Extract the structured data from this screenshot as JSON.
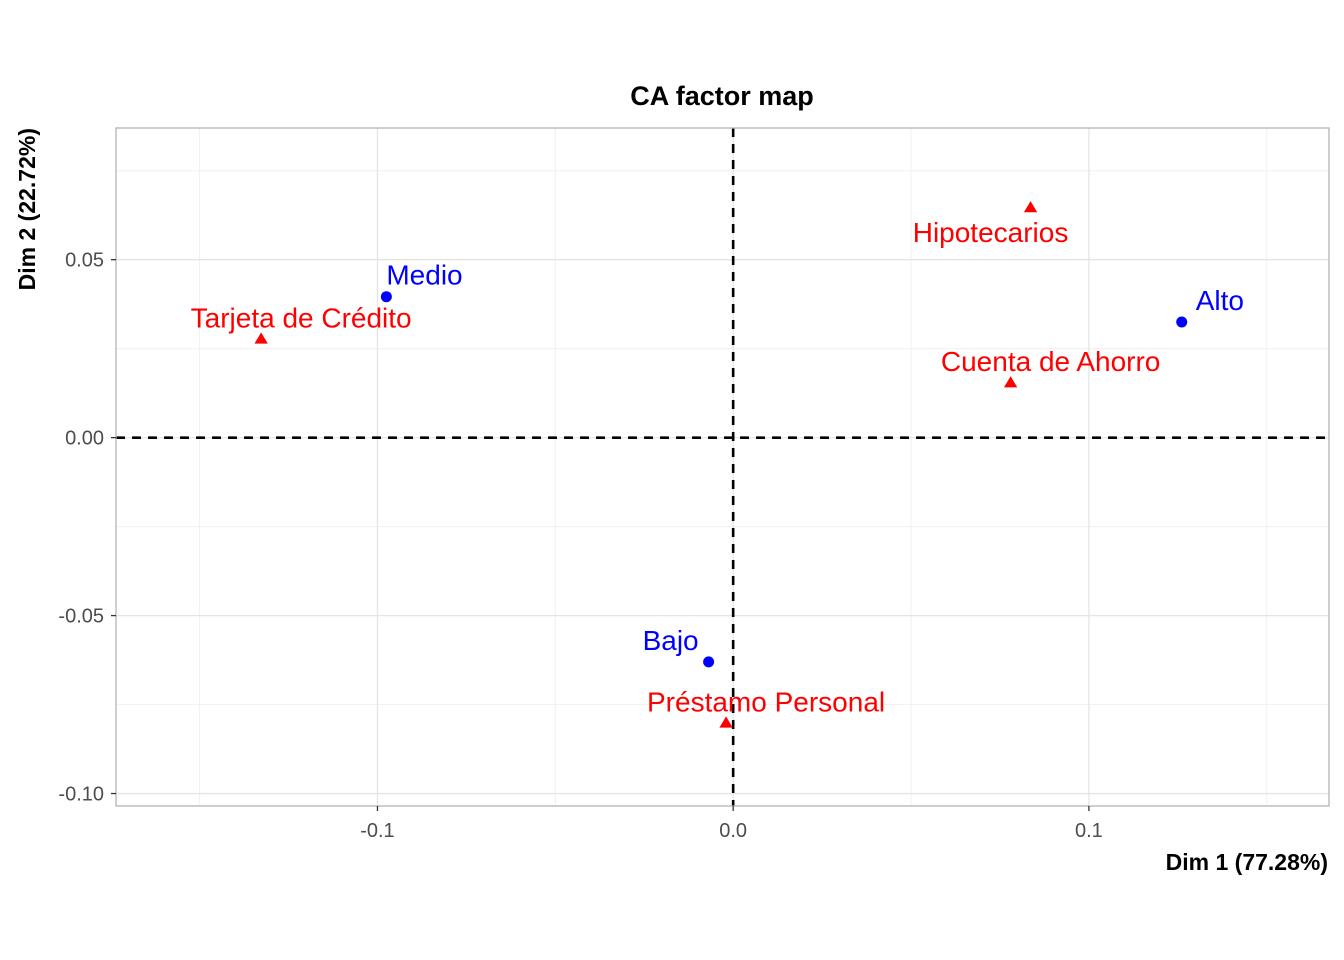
{
  "chart_data": {
    "type": "scatter",
    "title": "CA factor map",
    "xlabel": "Dim 1 (77.28%)",
    "ylabel": "Dim 2 (22.72%)",
    "xlim": [
      -0.1735,
      0.1675
    ],
    "ylim": [
      -0.1035,
      0.087
    ],
    "x_ticks": [
      -0.1,
      0.0,
      0.1
    ],
    "x_tick_labels": [
      "-0.1",
      "0.0",
      "0.1"
    ],
    "y_ticks": [
      -0.1,
      -0.05,
      0.0,
      0.05
    ],
    "y_tick_labels": [
      "-0.10",
      "-0.05",
      "0.00",
      "0.05"
    ],
    "grid": true,
    "reference_lines": {
      "x": 0,
      "y": 0,
      "style": "dashed"
    },
    "series": [
      {
        "name": "rows",
        "marker": "circle",
        "color": "#0000FF",
        "points": [
          {
            "label": "Medio",
            "x": -0.0975,
            "y": 0.0396
          },
          {
            "label": "Alto",
            "x": 0.1261,
            "y": 0.0325
          },
          {
            "label": "Bajo",
            "x": -0.0069,
            "y": -0.063
          }
        ]
      },
      {
        "name": "columns",
        "marker": "triangle",
        "color": "#FF0000",
        "points": [
          {
            "label": "Tarjeta de Crédito",
            "x": -0.1327,
            "y": 0.0276
          },
          {
            "label": "Hipotecarios",
            "x": 0.0836,
            "y": 0.0645
          },
          {
            "label": "Cuenta de Ahorro",
            "x": 0.078,
            "y": 0.0153
          },
          {
            "label": "Préstamo Personal",
            "x": -0.002,
            "y": -0.0803
          }
        ]
      }
    ]
  }
}
